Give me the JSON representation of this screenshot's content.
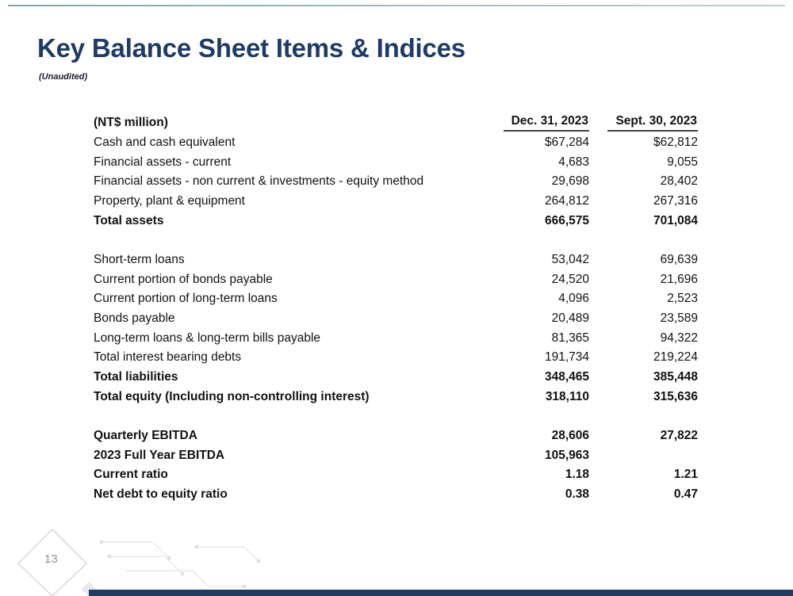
{
  "slide": {
    "title": "Key Balance Sheet Items & Indices",
    "subtitle": "(Unaudited)",
    "page_number": "13"
  },
  "colors": {
    "title_navy": "#1e3a66",
    "bottom_bar_navy": "#203a60",
    "top_line_teal": "#84a5a6",
    "decoration_gray": "#d3d8de"
  },
  "table": {
    "unit_label": "(NT$ million)",
    "col_headers": [
      "Dec. 31, 2023",
      "Sept. 30, 2023"
    ],
    "rows": [
      {
        "label": "Cash and cash equivalent",
        "col1": "$67,284",
        "col2": "$62,812",
        "bold": false
      },
      {
        "label": "Financial assets - current",
        "col1": "4,683",
        "col2": "9,055",
        "bold": false
      },
      {
        "label": "Financial assets - non current & investments - equity method",
        "col1": "29,698",
        "col2": "28,402",
        "bold": false
      },
      {
        "label": "Property, plant & equipment",
        "col1": "264,812",
        "col2": "267,316",
        "bold": false
      },
      {
        "label": "Total assets",
        "col1": "666,575",
        "col2": "701,084",
        "bold": true
      },
      {
        "spacer": true
      },
      {
        "label": "Short-term loans",
        "col1": "53,042",
        "col2": "69,639",
        "bold": false
      },
      {
        "label": "Current portion of bonds payable",
        "col1": "24,520",
        "col2": "21,696",
        "bold": false
      },
      {
        "label": "Current portion of long-term loans",
        "col1": "4,096",
        "col2": "2,523",
        "bold": false
      },
      {
        "label": "Bonds payable",
        "col1": "20,489",
        "col2": "23,589",
        "bold": false
      },
      {
        "label": "Long-term loans & long-term bills payable",
        "col1": "81,365",
        "col2": "94,322",
        "bold": false
      },
      {
        "label": "Total interest bearing debts",
        "col1": "191,734",
        "col2": "219,224",
        "bold": false
      },
      {
        "label": "Total liabilities",
        "col1": "348,465",
        "col2": "385,448",
        "bold": true
      },
      {
        "label": "Total equity (Including non-controlling interest)",
        "col1": "318,110",
        "col2": "315,636",
        "bold": true
      },
      {
        "spacer": true
      },
      {
        "label": "Quarterly EBITDA",
        "col1": "28,606",
        "col2": "27,822",
        "bold": true
      },
      {
        "label": "2023 Full Year EBITDA",
        "col1": "105,963",
        "col2": "",
        "bold": true
      },
      {
        "label": "Current ratio",
        "col1": "1.18",
        "col2": "1.21",
        "bold": true
      },
      {
        "label": "Net debt to equity ratio",
        "col1": "0.38",
        "col2": "0.47",
        "bold": true
      }
    ]
  }
}
